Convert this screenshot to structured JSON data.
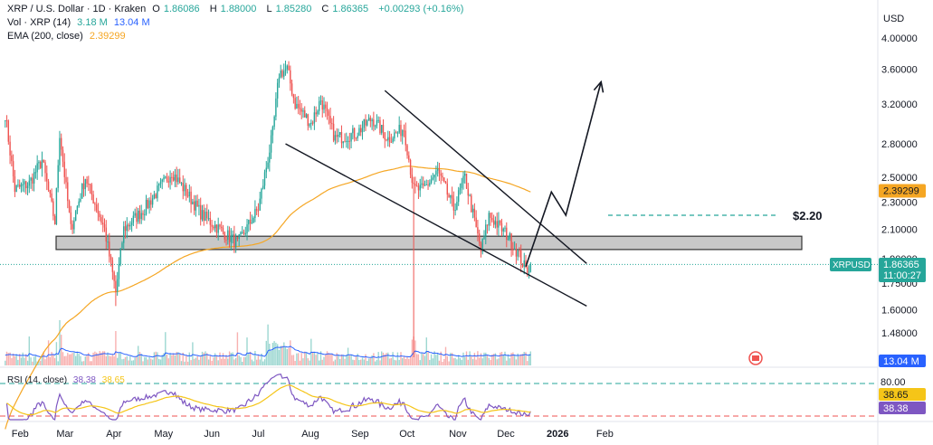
{
  "header": {
    "symbol": "XRP / U.S. Dollar · 1D · Kraken",
    "open_label": "O",
    "open": "1.86086",
    "high_label": "H",
    "high": "1.88000",
    "low_label": "L",
    "low": "1.85280",
    "close_label": "C",
    "close": "1.86365",
    "change": "+0.00293 (+0.16%)",
    "vol_label": "Vol · XRP (14)",
    "vol_value1": "3.18 M",
    "vol_value2": "13.04 M",
    "ema_label": "EMA (200, close)",
    "ema_value": "2.39299",
    "rsi_label": "RSI (14, close)",
    "rsi_value1": "38.38",
    "rsi_value2": "38.65"
  },
  "axis": {
    "currency": "USD",
    "price_ticks": [
      "4.00000",
      "3.60000",
      "3.20000",
      "2.80000",
      "2.50000",
      "2.30000",
      "2.10000",
      "1.90000",
      "1.75000",
      "1.60000",
      "1.48000"
    ],
    "months": [
      "Feb",
      "Mar",
      "Apr",
      "May",
      "Jun",
      "Jul",
      "Aug",
      "Sep",
      "Oct",
      "Nov",
      "Dec",
      "2026",
      "Feb"
    ],
    "rsi_tick": "80.00"
  },
  "badges": {
    "ema": "2.39299",
    "symbol": "XRPUSD",
    "price": "1.86365",
    "countdown": "11:00:27",
    "volume": "13.04 M",
    "rsi_ma": "38.65",
    "rsi": "38.38"
  },
  "annotations": {
    "target": "$2.20"
  },
  "colors": {
    "up": "#26a69a",
    "down": "#ef5350",
    "ema": "#f5a623",
    "rsi": "#7e57c2",
    "rsi_ma": "#f5c518",
    "vol_line": "#2962ff",
    "badge_blue": "#2962ff",
    "badge_teal": "#26a69a"
  },
  "chart_data": {
    "type": "candlestick",
    "ema_period": 200,
    "rsi_period": 14,
    "support_zone": [
      1.96,
      2.05
    ],
    "target_level": 2.2,
    "ylim": [
      1.45,
      4.05
    ],
    "y_scale": "log",
    "rsi_levels": [
      80,
      30
    ],
    "anchors": [
      {
        "date": "2025-01-28",
        "price": 3.1
      },
      {
        "date": "2025-02-03",
        "price": 2.4
      },
      {
        "date": "2025-02-12",
        "price": 2.45
      },
      {
        "date": "2025-02-20",
        "price": 2.65
      },
      {
        "date": "2025-02-28",
        "price": 2.15
      },
      {
        "date": "2025-03-03",
        "price": 2.9
      },
      {
        "date": "2025-03-10",
        "price": 2.1
      },
      {
        "date": "2025-03-19",
        "price": 2.5
      },
      {
        "date": "2025-03-31",
        "price": 2.1
      },
      {
        "date": "2025-04-07",
        "price": 1.7
      },
      {
        "date": "2025-04-12",
        "price": 2.1
      },
      {
        "date": "2025-04-25",
        "price": 2.25
      },
      {
        "date": "2025-05-12",
        "price": 2.55
      },
      {
        "date": "2025-05-31",
        "price": 2.2
      },
      {
        "date": "2025-06-22",
        "price": 2.0
      },
      {
        "date": "2025-07-05",
        "price": 2.25
      },
      {
        "date": "2025-07-14",
        "price": 2.9
      },
      {
        "date": "2025-07-18",
        "price": 3.55
      },
      {
        "date": "2025-07-23",
        "price": 3.6
      },
      {
        "date": "2025-07-28",
        "price": 3.2
      },
      {
        "date": "2025-08-07",
        "price": 3.0
      },
      {
        "date": "2025-08-13",
        "price": 3.25
      },
      {
        "date": "2025-08-22",
        "price": 2.85
      },
      {
        "date": "2025-09-04",
        "price": 2.9
      },
      {
        "date": "2025-09-14",
        "price": 3.05
      },
      {
        "date": "2025-09-24",
        "price": 2.85
      },
      {
        "date": "2025-10-04",
        "price": 2.95
      },
      {
        "date": "2025-10-10",
        "price": 2.4
      },
      {
        "date": "2025-10-16",
        "price": 2.4
      },
      {
        "date": "2025-10-25",
        "price": 2.55
      },
      {
        "date": "2025-11-04",
        "price": 2.25
      },
      {
        "date": "2025-11-11",
        "price": 2.5
      },
      {
        "date": "2025-11-21",
        "price": 1.95
      },
      {
        "date": "2025-11-26",
        "price": 2.2
      },
      {
        "date": "2025-12-08",
        "price": 2.05
      },
      {
        "date": "2025-12-15",
        "price": 1.92
      },
      {
        "date": "2025-12-19",
        "price": 1.83
      },
      {
        "date": "2025-12-22",
        "price": 1.86
      }
    ],
    "wedge_upper": [
      {
        "date": "2025-09-22",
        "price": 3.35
      },
      {
        "date": "2026-01-26",
        "price": 1.87
      }
    ],
    "wedge_lower": [
      {
        "date": "2025-07-22",
        "price": 2.8
      },
      {
        "date": "2026-01-26",
        "price": 1.62
      }
    ],
    "projection": [
      {
        "date": "2025-12-19",
        "price": 1.85
      },
      {
        "date": "2026-01-04",
        "price": 2.38
      },
      {
        "date": "2026-01-13",
        "price": 2.2
      },
      {
        "date": "2026-02-04",
        "price": 3.45
      }
    ]
  }
}
